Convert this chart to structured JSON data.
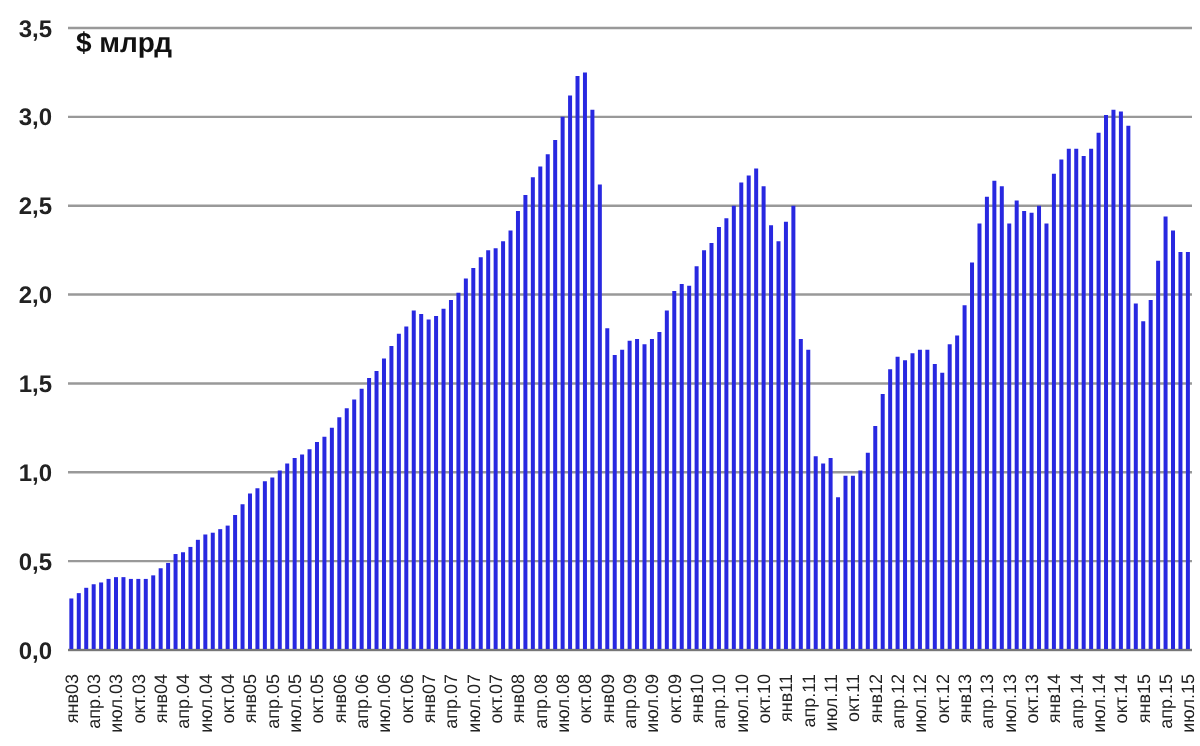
{
  "chart_data": {
    "type": "bar",
    "ylabel": "$ млрд",
    "categories": [
      "янв03",
      null,
      null,
      "апр.03",
      null,
      null,
      "июл.03",
      null,
      null,
      "окт.03",
      null,
      null,
      "янв04",
      null,
      null,
      "апр.04",
      null,
      null,
      "июл.04",
      null,
      null,
      "окт.04",
      null,
      null,
      "янв05",
      null,
      null,
      "апр.05",
      null,
      null,
      "июл.05",
      null,
      null,
      "окт.05",
      null,
      null,
      "янв06",
      null,
      null,
      "апр.06",
      null,
      null,
      "июл.06",
      null,
      null,
      "окт.06",
      null,
      null,
      "янв07",
      null,
      null,
      "апр.07",
      null,
      null,
      "июл.07",
      null,
      null,
      "окт.07",
      null,
      null,
      "янв08",
      null,
      null,
      "апр.08",
      null,
      null,
      "июл.08",
      null,
      null,
      "окт.08",
      null,
      null,
      "янв09",
      null,
      null,
      "апр.09",
      null,
      null,
      "июл.09",
      null,
      null,
      "окт.09",
      null,
      null,
      "янв10",
      null,
      null,
      "апр.10",
      null,
      null,
      "июл.10",
      null,
      null,
      "окт.10",
      null,
      null,
      "янв11",
      null,
      null,
      "апр.11",
      null,
      null,
      "июл.11",
      null,
      null,
      "окт.11",
      null,
      null,
      "янв12",
      null,
      null,
      "апр.12",
      null,
      null,
      "июл.12",
      null,
      null,
      "окт.12",
      null,
      null,
      "янв13",
      null,
      null,
      "апр.13",
      null,
      null,
      "июл.13",
      null,
      null,
      "окт.13",
      null,
      null,
      "янв14",
      null,
      null,
      "апр.14",
      null,
      null,
      "июл.14",
      null,
      null,
      "окт.14",
      null,
      null,
      "янв15",
      null,
      null,
      "апр.15",
      null,
      null,
      "июл.15"
    ],
    "values": [
      0.29,
      0.32,
      0.35,
      0.37,
      0.38,
      0.4,
      0.41,
      0.41,
      0.4,
      0.4,
      0.4,
      0.42,
      0.46,
      0.49,
      0.54,
      0.55,
      0.58,
      0.62,
      0.65,
      0.66,
      0.68,
      0.7,
      0.76,
      0.82,
      0.88,
      0.91,
      0.95,
      0.97,
      1.01,
      1.05,
      1.08,
      1.1,
      1.13,
      1.17,
      1.2,
      1.25,
      1.31,
      1.36,
      1.41,
      1.47,
      1.53,
      1.57,
      1.64,
      1.71,
      1.78,
      1.82,
      1.91,
      1.89,
      1.86,
      1.88,
      1.92,
      1.97,
      2.01,
      2.09,
      2.15,
      2.21,
      2.25,
      2.26,
      2.3,
      2.36,
      2.47,
      2.56,
      2.66,
      2.72,
      2.79,
      2.87,
      3.0,
      3.12,
      3.23,
      3.25,
      3.04,
      2.62,
      1.81,
      1.66,
      1.69,
      1.74,
      1.75,
      1.72,
      1.75,
      1.79,
      1.91,
      2.02,
      2.06,
      2.05,
      2.16,
      2.25,
      2.29,
      2.38,
      2.43,
      2.5,
      2.63,
      2.67,
      2.71,
      2.61,
      2.39,
      2.3,
      2.41,
      2.5,
      1.75,
      1.69,
      1.09,
      1.05,
      1.08,
      0.86,
      0.98,
      0.98,
      1.01,
      1.11,
      1.26,
      1.44,
      1.58,
      1.65,
      1.63,
      1.67,
      1.69,
      1.69,
      1.61,
      1.56,
      1.72,
      1.77,
      1.94,
      2.18,
      2.4,
      2.55,
      2.64,
      2.61,
      2.4,
      2.53,
      2.47,
      2.46,
      2.5,
      2.4,
      2.68,
      2.76,
      2.82,
      2.82,
      2.78,
      2.82,
      2.91,
      3.01,
      3.04,
      3.03,
      2.95,
      1.95,
      1.85,
      1.97,
      2.19,
      2.44,
      2.36,
      2.24,
      2.24
    ],
    "color": "#2828e0",
    "ylim": [
      0,
      3.5
    ],
    "yticks": [
      {
        "value": 0,
        "label": "0,0"
      },
      {
        "value": 0.5,
        "label": "0,5"
      },
      {
        "value": 1,
        "label": "1,0"
      },
      {
        "value": 1.5,
        "label": "1,5"
      },
      {
        "value": 2,
        "label": "2,0"
      },
      {
        "value": 2.5,
        "label": "2,5"
      },
      {
        "value": 3,
        "label": "3,0"
      },
      {
        "value": 3.5,
        "label": "3,5"
      }
    ],
    "grid": "y"
  }
}
